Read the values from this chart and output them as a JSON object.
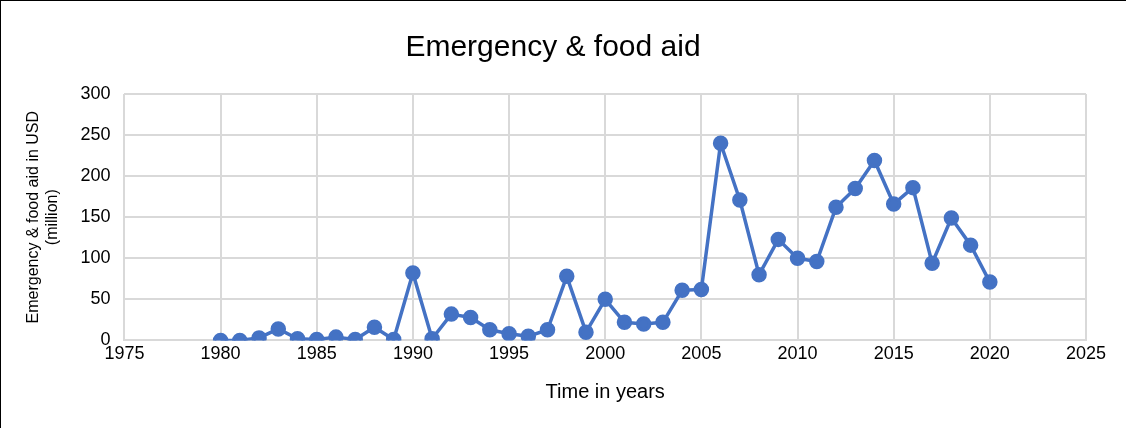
{
  "chart_data": {
    "type": "line",
    "title": "Emergency & food aid",
    "xlabel": "Time in years",
    "ylabel": "Emergency & food aid in USD (million)",
    "x": [
      1980,
      1981,
      1982,
      1983,
      1984,
      1985,
      1986,
      1987,
      1988,
      1989,
      1990,
      1991,
      1992,
      1993,
      1994,
      1995,
      1996,
      1997,
      1998,
      1999,
      2000,
      2001,
      2002,
      2003,
      2004,
      2005,
      2006,
      2007,
      2008,
      2009,
      2010,
      2011,
      2012,
      2013,
      2014,
      2015,
      2016,
      2017,
      2018,
      2019,
      2020
    ],
    "series": [
      {
        "color": "#4472c4",
        "values": [
          0,
          0,
          3,
          14,
          2,
          1,
          4,
          1,
          16,
          1,
          82,
          2,
          32,
          28,
          13,
          8,
          5,
          13,
          78,
          10,
          50,
          22,
          20,
          22,
          61,
          62,
          240,
          171,
          80,
          123,
          100,
          96,
          162,
          185,
          219,
          166,
          186,
          94,
          149,
          116,
          71
        ]
      }
    ],
    "xlim": [
      1975,
      2025
    ],
    "xticks": [
      1975,
      1980,
      1985,
      1990,
      1995,
      2000,
      2005,
      2010,
      2015,
      2020,
      2025
    ],
    "ylim": [
      0,
      300
    ],
    "yticks": [
      0,
      50,
      100,
      150,
      200,
      250,
      300
    ],
    "grid": true,
    "legend": false,
    "marker": "circle",
    "line_style": "solid"
  }
}
